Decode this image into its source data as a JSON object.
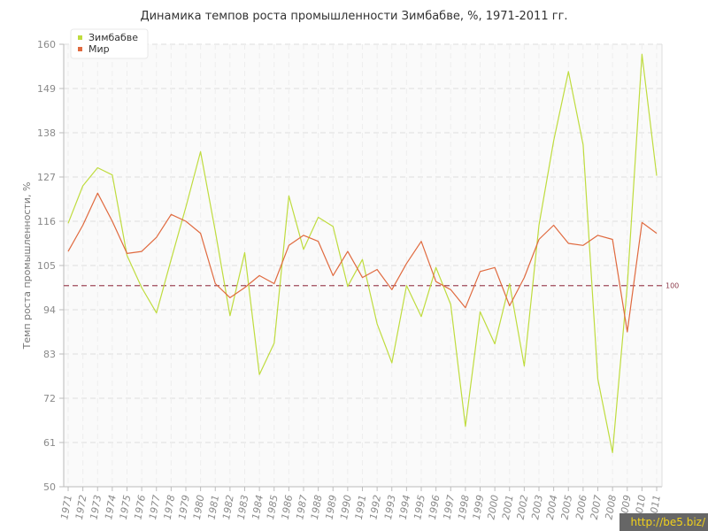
{
  "chart_data": {
    "type": "line",
    "title": "Динамика темпов роста промышленности Зимбабве, %, 1971-2011 гг.",
    "xlabel": "",
    "ylabel": "Темп роста промышленности, %",
    "ylim": [
      50,
      160
    ],
    "yticks": [
      "50",
      "61",
      "72",
      "83",
      "94",
      "105",
      "116",
      "127",
      "138",
      "149",
      "160"
    ],
    "categories": [
      "1971",
      "1972",
      "1973",
      "1974",
      "1975",
      "1976",
      "1977",
      "1978",
      "1979",
      "1980",
      "1981",
      "1982",
      "1983",
      "1984",
      "1985",
      "1986",
      "1987",
      "1988",
      "1989",
      "1990",
      "1991",
      "1992",
      "1993",
      "1994",
      "1995",
      "1996",
      "1997",
      "1998",
      "1999",
      "2000",
      "2001",
      "2002",
      "2003",
      "2004",
      "2005",
      "2006",
      "2007",
      "2008",
      "2009",
      "2010",
      "2011"
    ],
    "series": [
      {
        "name": "Зимбабве",
        "color": "#bfdc3e",
        "values": [
          115.5,
          124.8,
          129.3,
          127.5,
          107.5,
          99.5,
          93.2,
          106.5,
          119.5,
          133.3,
          113.5,
          92.5,
          108.2,
          77.9,
          85.7,
          122.3,
          109.0,
          117.0,
          114.7,
          99.8,
          106.5,
          90.5,
          80.8,
          100.0,
          92.3,
          104.5,
          95.3,
          65.0,
          93.5,
          85.5,
          100.5,
          80.0,
          115.0,
          136.0,
          153.2,
          135.0,
          76.8,
          58.5,
          100.0,
          157.5,
          127.3
        ]
      },
      {
        "name": "Мир",
        "color": "#e06a3f",
        "values": [
          108.5,
          115.0,
          123.0,
          116.0,
          108.0,
          108.5,
          112.0,
          117.7,
          116.0,
          113.0,
          100.5,
          97.0,
          99.5,
          102.5,
          100.5,
          110.0,
          112.5,
          111.0,
          102.5,
          108.5,
          102.0,
          104.0,
          99.0,
          105.5,
          111.0,
          101.0,
          99.0,
          94.5,
          103.5,
          104.5,
          95.0,
          102.0,
          111.5,
          115.0,
          110.5,
          110.0,
          112.5,
          111.5,
          88.5,
          115.7,
          113.0
        ]
      }
    ],
    "reference_line": {
      "value": 100,
      "label": "100",
      "color": "#a04a5a"
    },
    "legend": {
      "position": "top-left"
    },
    "grid": true
  },
  "watermark": "http://be5.biz/"
}
